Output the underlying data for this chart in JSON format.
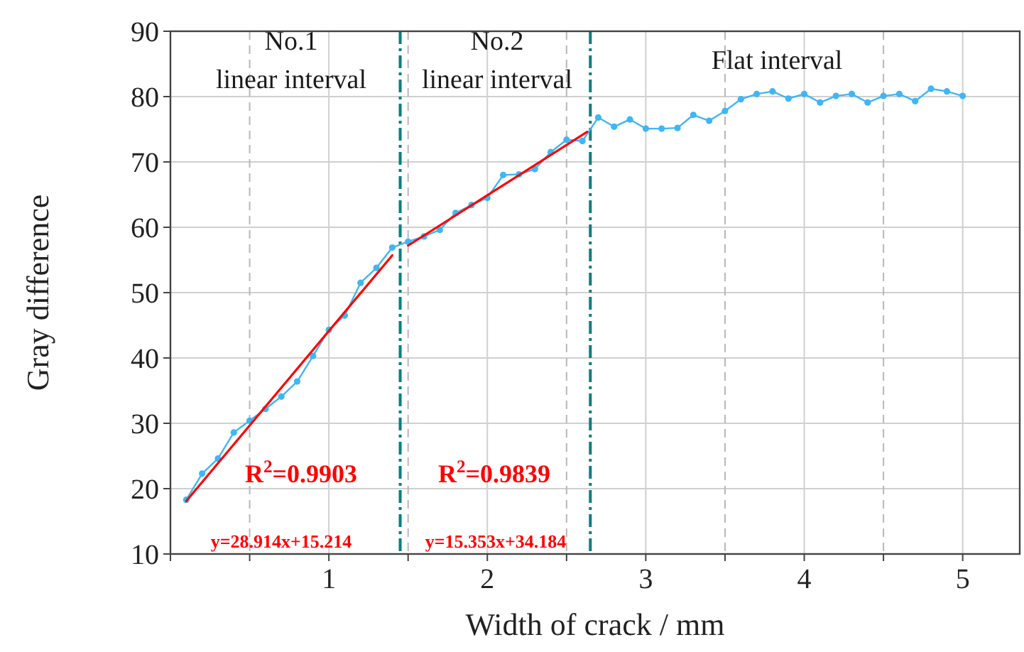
{
  "chart_data": {
    "type": "line",
    "xlabel": "Width of crack / mm",
    "ylabel": "Gray difference",
    "xlim": [
      0,
      5.36
    ],
    "ylim": [
      10,
      90
    ],
    "xticks": [
      {
        "value": 0,
        "label": null
      },
      {
        "value": 0.5,
        "label": null
      },
      1,
      {
        "value": 1.5,
        "label": null
      },
      2,
      {
        "value": 2.5,
        "label": null
      },
      3,
      {
        "value": 3.5,
        "label": null
      },
      4,
      {
        "value": 4.5,
        "label": null
      },
      5
    ],
    "yticks": [
      10,
      20,
      30,
      40,
      50,
      60,
      70,
      80,
      90
    ],
    "grid": true,
    "series": [
      {
        "color": "#3fb6f5",
        "marker": "circle",
        "line_style": "solid",
        "x": [
          0.1,
          0.2,
          0.3,
          0.4,
          0.5,
          0.6,
          0.7,
          0.8,
          0.9,
          1.0,
          1.1,
          1.2,
          1.3,
          1.4,
          1.5,
          1.6,
          1.7,
          1.8,
          1.9,
          2.0,
          2.1,
          2.2,
          2.3,
          2.4,
          2.5,
          2.6,
          2.7,
          2.8,
          2.9,
          3.0,
          3.1,
          3.2,
          3.3,
          3.4,
          3.5,
          3.6,
          3.7,
          3.8,
          3.9,
          4.0,
          4.1,
          4.2,
          4.3,
          4.4,
          4.5,
          4.6,
          4.7,
          4.8,
          4.9,
          5.0
        ],
        "values": [
          18.3,
          22.3,
          24.6,
          28.6,
          30.4,
          32.2,
          34.1,
          36.4,
          40.3,
          44.3,
          46.5,
          51.5,
          53.8,
          56.9,
          57.8,
          58.6,
          59.6,
          62.2,
          63.4,
          64.5,
          68.0,
          68.1,
          68.9,
          71.5,
          73.4,
          73.2,
          76.8,
          75.4,
          76.5,
          75.1,
          75.1,
          75.2,
          77.2,
          76.3,
          77.8,
          79.6,
          80.4,
          80.8,
          79.7,
          80.4,
          79.1,
          80.1,
          80.4,
          79.1,
          80.1,
          80.4,
          79.3,
          81.2,
          80.8,
          80.1
        ]
      },
      {
        "color": "#ff0000",
        "marker": "none",
        "line_style": "solid",
        "x": [
          0.1,
          1.4
        ],
        "values": [
          18.1,
          55.7
        ]
      },
      {
        "color": "#ff0000",
        "marker": "none",
        "line_style": "solid",
        "x": [
          1.5,
          2.63
        ],
        "values": [
          57.2,
          74.6
        ]
      }
    ],
    "ref_lines": [
      {
        "axis": "x",
        "value": 1.45,
        "color": "#008080",
        "line_style": "dashed"
      },
      {
        "axis": "x",
        "value": 2.65,
        "color": "#008080",
        "line_style": "dashed"
      }
    ],
    "annotations": [
      "No.1\nlinear interval",
      "No.2\nlinear interval",
      "Flat interval",
      "R$^{2}$=0.9903",
      "y=28.914x+15.214",
      "R$^{2}$=0.9839",
      "y=15.353x+34.184"
    ]
  }
}
